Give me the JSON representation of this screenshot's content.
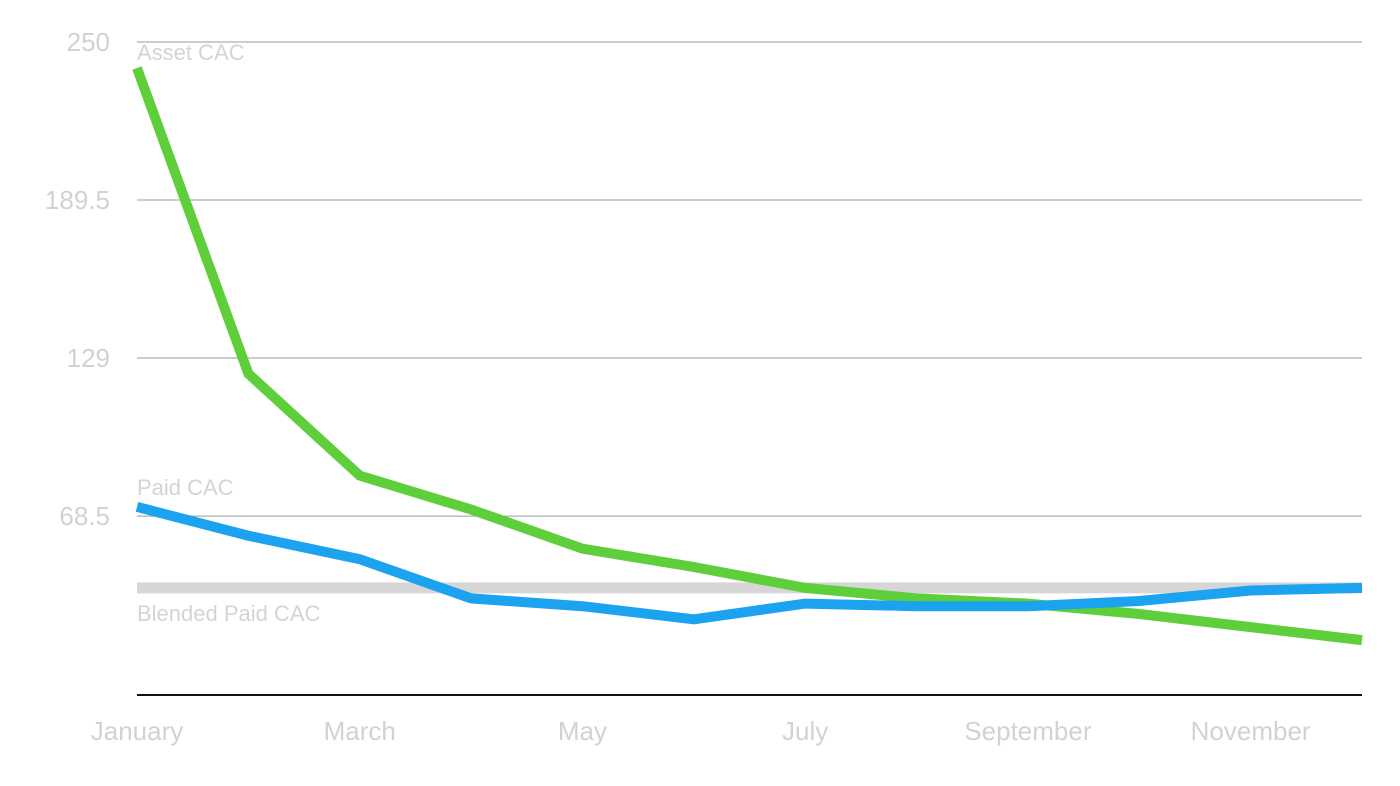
{
  "chart_data": {
    "type": "line",
    "title": "",
    "xlabel": "",
    "ylabel": "",
    "ylim": [
      0,
      250
    ],
    "y_ticks": [
      {
        "value": 250,
        "label": "250"
      },
      {
        "value": 189.5,
        "label": "189.5"
      },
      {
        "value": 129,
        "label": "129"
      },
      {
        "value": 68.5,
        "label": "68.5"
      }
    ],
    "categories": [
      "January",
      "February",
      "March",
      "April",
      "May",
      "June",
      "July",
      "August",
      "September",
      "October",
      "November",
      "December"
    ],
    "x_tick_labels": [
      "January",
      "March",
      "May",
      "July",
      "September",
      "November"
    ],
    "grid": true,
    "legend": "none",
    "series": [
      {
        "name": "Asset CAC",
        "color": "#5ecf3a",
        "values": [
          240,
          123,
          84,
          71,
          56,
          49,
          41,
          37,
          35,
          31,
          26,
          21
        ]
      },
      {
        "name": "Paid CAC",
        "color": "#1ba3ef",
        "values": [
          72,
          61,
          52,
          37,
          34,
          29,
          35,
          34,
          34,
          36,
          40,
          41
        ]
      },
      {
        "name": "Blended Paid CAC",
        "color": "#d6d6d6",
        "values": [
          41,
          41,
          41,
          41,
          41,
          41,
          41,
          41,
          41,
          41,
          41,
          41
        ]
      }
    ]
  }
}
